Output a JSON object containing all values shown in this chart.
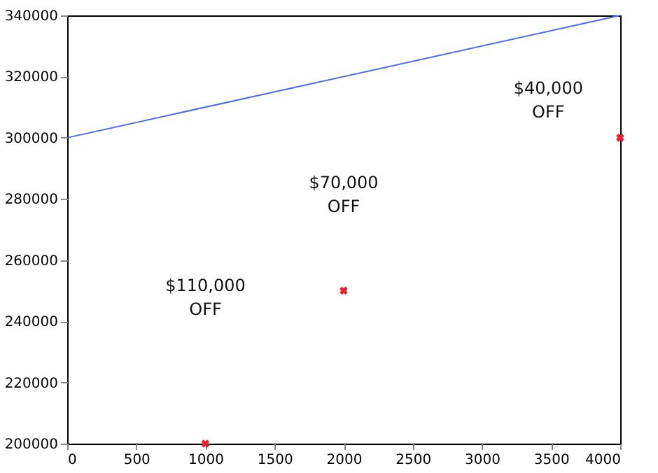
{
  "chart_data": {
    "type": "line",
    "series": [
      {
        "color": "#4a6cf0",
        "x": [
          0,
          4000
        ],
        "values": [
          300000,
          340000
        ],
        "marker": "none"
      },
      {
        "type": "scatter",
        "color": "#e8202a",
        "x": [
          1000,
          2000,
          4000
        ],
        "values": [
          200000,
          250000,
          300000
        ],
        "marker": "cross"
      }
    ],
    "xlim": [
      0,
      4000
    ],
    "xticks": [
      0,
      500,
      1000,
      1500,
      2000,
      2500,
      3000,
      3500,
      4000
    ],
    "ylim": [
      200000,
      340000
    ],
    "yticks": [
      200000,
      220000,
      240000,
      260000,
      280000,
      300000,
      320000,
      340000
    ],
    "grid": false,
    "annotations": [
      "$110,000 OFF",
      "$70,000 OFF",
      "$40,000 OFF"
    ]
  }
}
